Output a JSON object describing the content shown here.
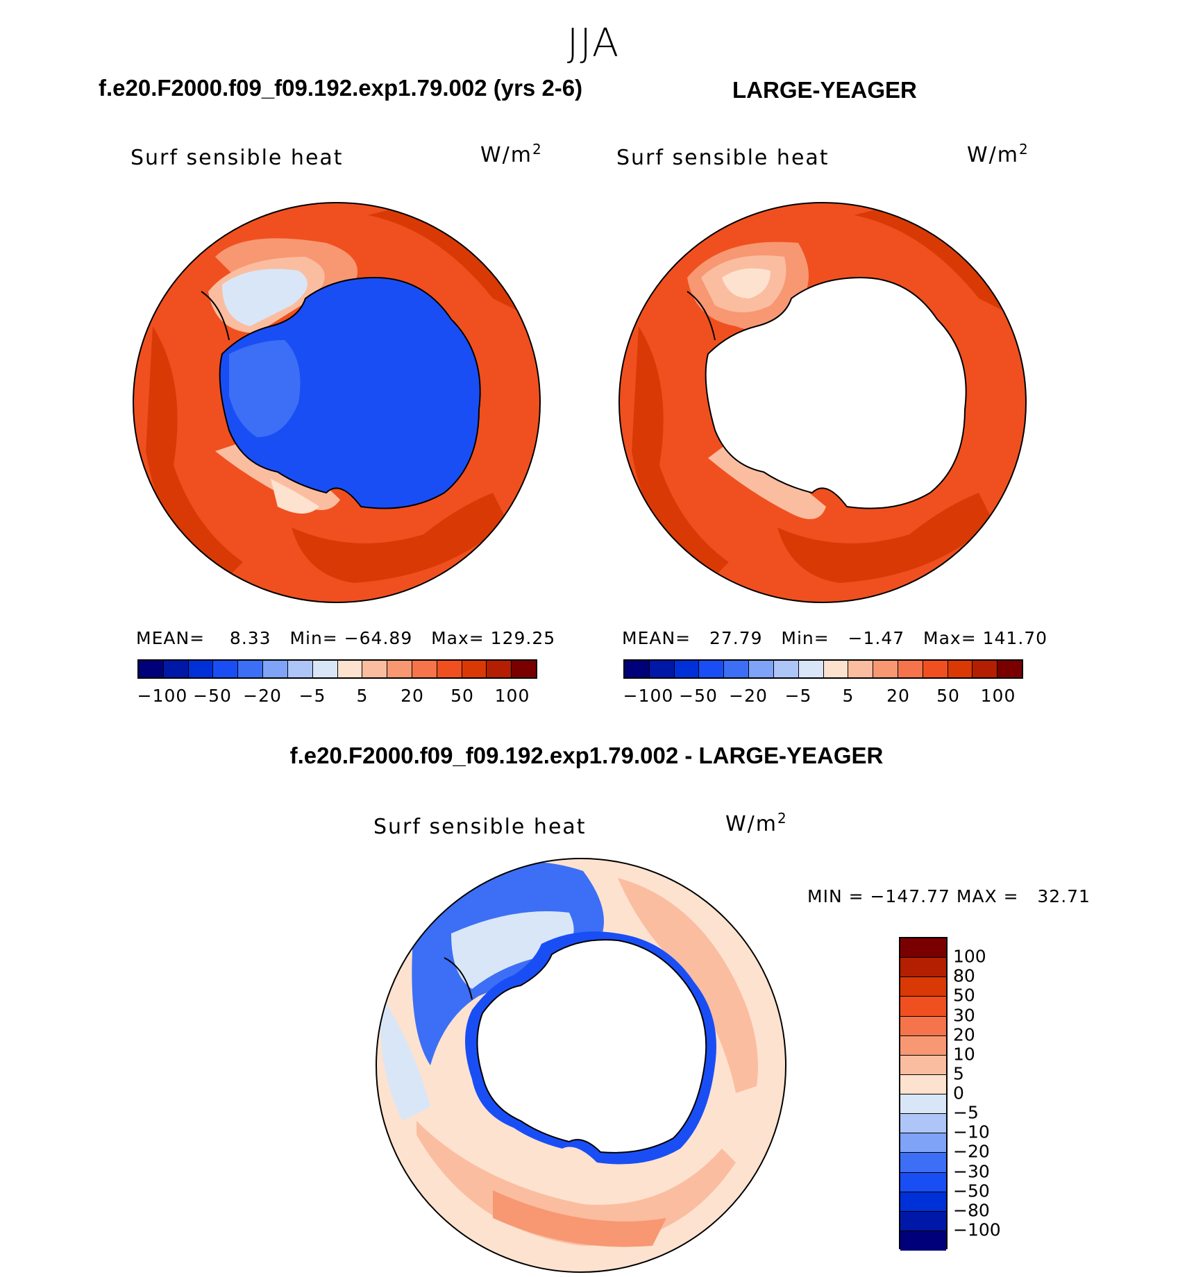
{
  "figure": {
    "season": "JJA",
    "panel_a": {
      "title": "f.e20.F2000.f09_f09.192.exp1.79.002 (yrs 2-6)",
      "variable": "Surf sensible heat",
      "units_base": "W/m",
      "units_exp": "2",
      "mean_label": "MEAN=",
      "mean_value": "8.33",
      "min_label": "Min=",
      "min_value": "−64.89",
      "max_label": "Max=",
      "max_value": "129.25"
    },
    "panel_b": {
      "title": "LARGE-YEAGER",
      "variable": "Surf sensible heat",
      "units_base": "W/m",
      "units_exp": "2",
      "mean_label": "MEAN=",
      "mean_value": "27.79",
      "min_label": "Min=",
      "min_value": "−1.47",
      "max_label": "Max=",
      "max_value": "141.70"
    },
    "panel_c": {
      "title": "f.e20.F2000.f09_f09.192.exp1.79.002 - LARGE-YEAGER",
      "variable": "Surf sensible heat",
      "units_base": "W/m",
      "units_exp": "2",
      "minmax_text": "MIN = −147.77 MAX =   32.71"
    },
    "colorbar_top": {
      "colors": [
        "#00007a",
        "#0018a8",
        "#0030d8",
        "#1a4ef5",
        "#3c6ff5",
        "#7fa3f7",
        "#aec5f7",
        "#d9e6f7",
        "#fde2cf",
        "#fbbda0",
        "#f79873",
        "#f5744c",
        "#f0501f",
        "#d93a05",
        "#b31f00",
        "#7a0000"
      ],
      "tick_labels": [
        "−100",
        "−50",
        "−20",
        "−5",
        "5",
        "20",
        "50",
        "100"
      ]
    },
    "colorbar_diff": {
      "colors": [
        "#7a0000",
        "#b31f00",
        "#d93a05",
        "#f0501f",
        "#f5744c",
        "#f79873",
        "#fbbda0",
        "#fde2cf",
        "#d9e6f7",
        "#aec5f7",
        "#7fa3f7",
        "#3c6ff5",
        "#1a4ef5",
        "#0030d8",
        "#0018a8",
        "#00007a"
      ],
      "tick_labels": [
        "100",
        "80",
        "50",
        "30",
        "20",
        "10",
        "5",
        "0",
        "−5",
        "−10",
        "−20",
        "−30",
        "−50",
        "−80",
        "−100"
      ]
    },
    "map_colors": {
      "ocean_warm_strong": "#d93a05",
      "ocean_warm": "#f0501f",
      "ocean_mid": "#f5744c",
      "ocean_light": "#f79873",
      "ocean_pale": "#fbbda0",
      "ocean_very_pale": "#fde2cf",
      "continent_blue": "#1a4ef5",
      "continent_blue_light": "#3c6ff5",
      "ice_blue_pale": "#aec5f7",
      "diff_blue_dark": "#1a4ef5",
      "diff_blue": "#3c6ff5",
      "diff_blue_light": "#7fa3f7",
      "diff_blue_pale": "#d9e6f7",
      "diff_orange_pale": "#fde2cf",
      "diff_orange_light": "#fbbda0",
      "diff_orange": "#f79873"
    }
  }
}
